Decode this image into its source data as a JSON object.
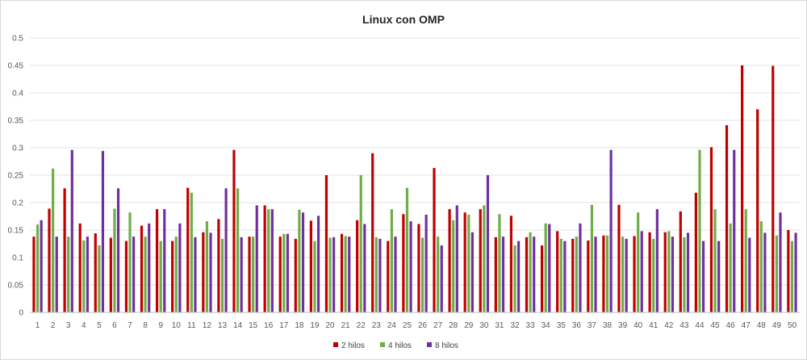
{
  "chart_data": {
    "type": "bar",
    "title": "Linux con OMP",
    "xlabel": "",
    "ylabel": "",
    "ylim": [
      0,
      0.5
    ],
    "yticks": [
      "0",
      "0.05",
      "0.1",
      "0.15",
      "0.2",
      "0.25",
      "0.3",
      "0.35",
      "0.4",
      "0.45",
      "0.5"
    ],
    "grid": true,
    "legend_position": "bottom",
    "categories": [
      "1",
      "2",
      "3",
      "4",
      "5",
      "6",
      "7",
      "8",
      "9",
      "10",
      "11",
      "12",
      "13",
      "14",
      "15",
      "16",
      "17",
      "18",
      "19",
      "20",
      "21",
      "22",
      "23",
      "24",
      "25",
      "26",
      "27",
      "28",
      "29",
      "30",
      "31",
      "32",
      "33",
      "34",
      "35",
      "36",
      "37",
      "38",
      "39",
      "40",
      "41",
      "42",
      "43",
      "44",
      "45",
      "46",
      "47",
      "48",
      "49",
      "50"
    ],
    "series": [
      {
        "name": "2 hilos",
        "color": "#c00000",
        "values": [
          0.138,
          0.189,
          0.226,
          0.162,
          0.144,
          0.136,
          0.13,
          0.158,
          0.188,
          0.13,
          0.227,
          0.146,
          0.17,
          0.296,
          0.138,
          0.195,
          0.138,
          0.134,
          0.167,
          0.25,
          0.143,
          0.168,
          0.29,
          0.13,
          0.179,
          0.161,
          0.263,
          0.188,
          0.182,
          0.188,
          0.137,
          0.176,
          0.137,
          0.122,
          0.148,
          0.134,
          0.131,
          0.14,
          0.196,
          0.139,
          0.146,
          0.146,
          0.184,
          0.218,
          0.301,
          0.341,
          0.45,
          0.37,
          0.449,
          0.15
        ]
      },
      {
        "name": "4 hilos",
        "color": "#70ad47",
        "values": [
          0.16,
          0.262,
          0.138,
          0.131,
          0.122,
          0.189,
          0.182,
          0.138,
          0.13,
          0.138,
          0.218,
          0.166,
          0.134,
          0.226,
          0.138,
          0.188,
          0.143,
          0.187,
          0.13,
          0.136,
          0.139,
          0.25,
          0.137,
          0.188,
          0.227,
          0.136,
          0.138,
          0.168,
          0.178,
          0.195,
          0.179,
          0.122,
          0.146,
          0.162,
          0.134,
          0.138,
          0.196,
          0.14,
          0.138,
          0.182,
          0.134,
          0.148,
          0.137,
          0.296,
          0.188,
          0.162,
          0.188,
          0.166,
          0.14,
          0.13
        ]
      },
      {
        "name": "8 hilos",
        "color": "#7030a0",
        "values": [
          0.168,
          0.138,
          0.296,
          0.138,
          0.294,
          0.226,
          0.138,
          0.162,
          0.188,
          0.162,
          0.137,
          0.145,
          0.226,
          0.137,
          0.195,
          0.188,
          0.143,
          0.182,
          0.176,
          0.137,
          0.138,
          0.161,
          0.134,
          0.138,
          0.166,
          0.178,
          0.122,
          0.195,
          0.146,
          0.25,
          0.138,
          0.13,
          0.138,
          0.161,
          0.13,
          0.162,
          0.138,
          0.296,
          0.134,
          0.148,
          0.188,
          0.138,
          0.145,
          0.13,
          0.13,
          0.296,
          0.136,
          0.145,
          0.182,
          0.145
        ]
      }
    ]
  }
}
